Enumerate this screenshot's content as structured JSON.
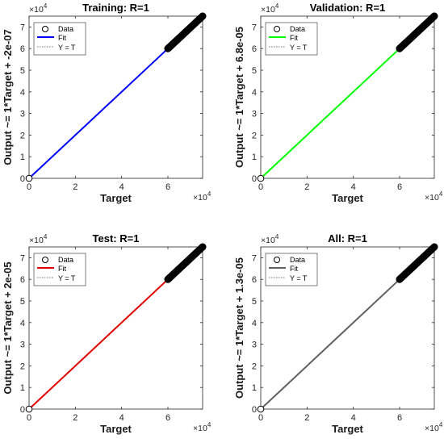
{
  "chart_data": [
    {
      "type": "scatter",
      "title": "Training: R=1",
      "xlabel": "Target",
      "ylabel": "Output ~= 1*Target + -2e-07",
      "xlim": [
        0,
        75000
      ],
      "ylim": [
        0,
        75000
      ],
      "xticks": [
        "0",
        "2",
        "4",
        "6"
      ],
      "yticks": [
        "0",
        "1",
        "2",
        "3",
        "4",
        "5",
        "6",
        "7"
      ],
      "axis_multiplier": "×10^4",
      "fit_color": "#0000ff",
      "fit": {
        "slope": 1,
        "intercept": -2e-07
      },
      "data_points": {
        "x": [
          0,
          60000,
          61500,
          63000,
          64500,
          66000,
          67500,
          69000,
          70500,
          72000,
          73500,
          75000
        ],
        "y": [
          0,
          60000,
          61500,
          63000,
          64500,
          66000,
          67500,
          69000,
          70500,
          72000,
          73500,
          75000
        ]
      },
      "legend": {
        "placement": "top-left",
        "entries": [
          "Data",
          "Fit",
          "Y = T"
        ]
      },
      "grid": false
    },
    {
      "type": "scatter",
      "title": "Validation: R=1",
      "xlabel": "Target",
      "ylabel": "Output ~= 1*Target + 6.8e-05",
      "xlim": [
        0,
        75000
      ],
      "ylim": [
        0,
        75000
      ],
      "xticks": [
        "0",
        "2",
        "4",
        "6"
      ],
      "yticks": [
        "0",
        "1",
        "2",
        "3",
        "4",
        "5",
        "6",
        "7"
      ],
      "axis_multiplier": "×10^4",
      "fit_color": "#00ff00",
      "fit": {
        "slope": 1,
        "intercept": 6.8e-05
      },
      "data_points": {
        "x": [
          0,
          60000,
          61500,
          63000,
          64500,
          66000,
          67500,
          69000,
          70500,
          72000,
          73500,
          75000
        ],
        "y": [
          0,
          60000,
          61500,
          63000,
          64500,
          66000,
          67500,
          69000,
          70500,
          72000,
          73500,
          75000
        ]
      },
      "legend": {
        "placement": "top-left",
        "entries": [
          "Data",
          "Fit",
          "Y = T"
        ]
      },
      "grid": false
    },
    {
      "type": "scatter",
      "title": "Test: R=1",
      "xlabel": "Target",
      "ylabel": "Output ~= 1*Target + 2e-05",
      "xlim": [
        0,
        75000
      ],
      "ylim": [
        0,
        75000
      ],
      "xticks": [
        "0",
        "2",
        "4",
        "6"
      ],
      "yticks": [
        "0",
        "1",
        "2",
        "3",
        "4",
        "5",
        "6",
        "7"
      ],
      "axis_multiplier": "×10^4",
      "fit_color": "#e00000",
      "fit": {
        "slope": 1,
        "intercept": 2e-05
      },
      "data_points": {
        "x": [
          0,
          60000,
          61500,
          63000,
          64500,
          66000,
          67500,
          69000,
          70500,
          72000,
          73500,
          75000
        ],
        "y": [
          0,
          60000,
          61500,
          63000,
          64500,
          66000,
          67500,
          69000,
          70500,
          72000,
          73500,
          75000
        ]
      },
      "legend": {
        "placement": "top-left",
        "entries": [
          "Data",
          "Fit",
          "Y = T"
        ]
      },
      "grid": false
    },
    {
      "type": "scatter",
      "title": "All: R=1",
      "xlabel": "Target",
      "ylabel": "Output ~= 1*Target + 1.3e-05",
      "xlim": [
        0,
        75000
      ],
      "ylim": [
        0,
        75000
      ],
      "xticks": [
        "0",
        "2",
        "4",
        "6"
      ],
      "yticks": [
        "0",
        "1",
        "2",
        "3",
        "4",
        "5",
        "6",
        "7"
      ],
      "axis_multiplier": "×10^4",
      "fit_color": "#606060",
      "fit": {
        "slope": 1,
        "intercept": 1.3e-05
      },
      "data_points": {
        "x": [
          0,
          60000,
          61500,
          63000,
          64500,
          66000,
          67500,
          69000,
          70500,
          72000,
          73500,
          75000
        ],
        "y": [
          0,
          60000,
          61500,
          63000,
          64500,
          66000,
          67500,
          69000,
          70500,
          72000,
          73500,
          75000
        ]
      },
      "legend": {
        "placement": "top-left",
        "entries": [
          "Data",
          "Fit",
          "Y = T"
        ]
      },
      "grid": false
    }
  ]
}
